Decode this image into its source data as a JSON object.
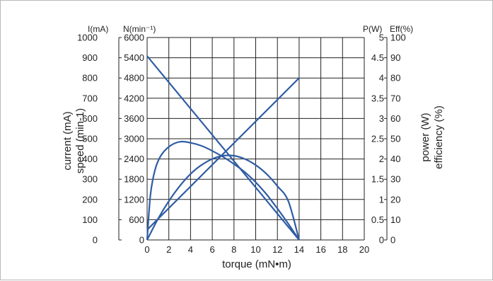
{
  "chart_data": {
    "type": "line",
    "title": "",
    "xlabel": "torque (mN•m)",
    "xlim": [
      0,
      20
    ],
    "x_ticks": [
      "0",
      "2",
      "4",
      "6",
      "8",
      "10",
      "12",
      "14",
      "16",
      "18",
      "20"
    ],
    "grid": true,
    "axes": {
      "current": {
        "unit_label": "I(mA)",
        "title": "current (mA)",
        "lim": [
          0,
          1000
        ],
        "ticks": [
          "0",
          "100",
          "200",
          "300",
          "400",
          "500",
          "600",
          "700",
          "800",
          "900",
          "1000"
        ]
      },
      "speed": {
        "unit_label": "N(min⁻¹)",
        "title": "speed (min-1)",
        "lim": [
          0,
          6000
        ],
        "ticks": [
          "0",
          "600",
          "1200",
          "1800",
          "2400",
          "3000",
          "3600",
          "4200",
          "4800",
          "5400",
          "6000"
        ]
      },
      "power": {
        "unit_label": "P(W)",
        "title": "power (W)",
        "lim": [
          0,
          5
        ],
        "ticks": [
          "0",
          "0.5",
          "1",
          "1.5",
          "2",
          "2.5",
          "3",
          "3.5",
          "4",
          "4.5",
          "5"
        ]
      },
      "efficiency": {
        "unit_label": "Eff(%)",
        "title": "efficiency (%)",
        "lim": [
          0,
          100
        ],
        "ticks": [
          "0",
          "10",
          "20",
          "30",
          "40",
          "50",
          "60",
          "70",
          "80",
          "90",
          "100"
        ]
      }
    },
    "series": [
      {
        "axis": "speed",
        "color": "#2f5da4",
        "x": [
          0,
          14
        ],
        "y": [
          5450,
          0
        ]
      },
      {
        "axis": "current",
        "color": "#2f5da4",
        "x": [
          0,
          14
        ],
        "y": [
          50,
          800
        ]
      },
      {
        "axis": "power",
        "color": "#2f5da4",
        "x": [
          0,
          1,
          2,
          3,
          4,
          5,
          6,
          7,
          8,
          9,
          10,
          11,
          12,
          13,
          14
        ],
        "y": [
          0,
          0.52,
          0.96,
          1.33,
          1.63,
          1.85,
          2.0,
          2.08,
          2.08,
          2.0,
          1.85,
          1.63,
          1.33,
          0.96,
          0
        ]
      },
      {
        "axis": "efficiency",
        "color": "#2f5da4",
        "x": [
          0,
          0.3,
          0.7,
          1.2,
          2,
          3,
          4,
          5,
          6,
          7,
          8,
          9,
          10,
          11,
          12,
          13,
          14
        ],
        "y": [
          0,
          22,
          34,
          41,
          46,
          48.5,
          48,
          46.5,
          44,
          41,
          37.5,
          33.5,
          28.5,
          22.5,
          15.5,
          8,
          0
        ]
      }
    ]
  }
}
